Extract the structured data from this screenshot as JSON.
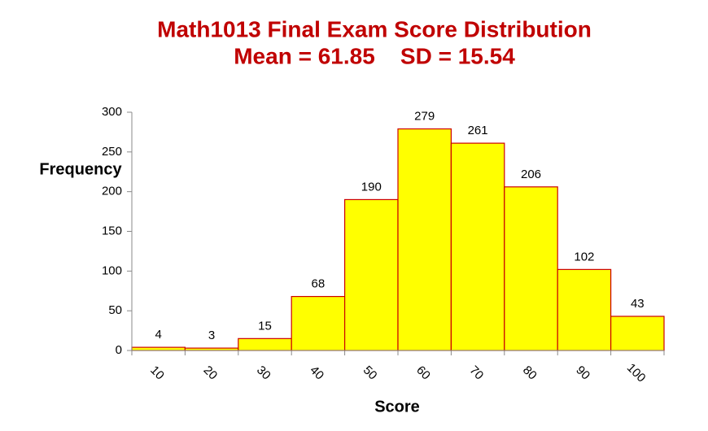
{
  "chart_data": {
    "type": "bar",
    "title": "Math1013 Final Exam Score Distribution",
    "subtitle": "Mean = 61.85    SD = 15.54",
    "x_label": "Score",
    "y_label": "Frequency",
    "categories": [
      "10",
      "20",
      "30",
      "40",
      "50",
      "60",
      "70",
      "80",
      "90",
      "100"
    ],
    "values": [
      4,
      3,
      15,
      68,
      190,
      279,
      261,
      206,
      102,
      43
    ],
    "color": "#ffff00",
    "edge_color": "#cc0000",
    "ylim": [
      0,
      300
    ],
    "yticks": [
      0,
      50,
      100,
      150,
      200,
      250,
      300
    ],
    "grid": false
  }
}
